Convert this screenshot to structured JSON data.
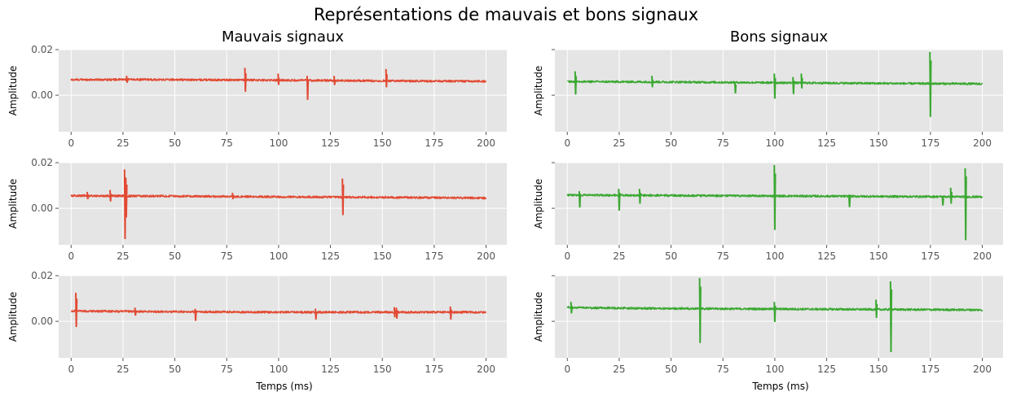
{
  "suptitle": "Représentations de mauvais et bons signaux",
  "columns": [
    {
      "title": "Mauvais signaux",
      "color": "#e24a33"
    },
    {
      "title": "Bons signaux",
      "color": "#3aa831"
    }
  ],
  "style": {
    "panel_bg": "#e5e5e5",
    "grid_color": "#ffffff",
    "tick_color": "#555555"
  },
  "chart_data": [
    {
      "type": "line",
      "panel": "bad-1",
      "column": 0,
      "row": 0,
      "ylabel": "Amplitude",
      "xlabel": "",
      "xlim": [
        -6,
        210
      ],
      "ylim": [
        -0.016,
        0.02
      ],
      "xticks": [
        0,
        25,
        50,
        75,
        100,
        125,
        150,
        175,
        200
      ],
      "yticks": [
        0.0,
        0.02
      ],
      "ytick_labels": [
        "0.00",
        "0.02"
      ],
      "grid": true,
      "baseline": [
        [
          0,
          0.0068
        ],
        [
          30,
          0.0069
        ],
        [
          100,
          0.0066
        ],
        [
          150,
          0.0063
        ],
        [
          200,
          0.0061
        ]
      ],
      "spikes": [
        [
          84,
          0.012,
          0.0015
        ],
        [
          114,
          0.0085,
          -0.002
        ],
        [
          152,
          0.0115,
          0.0035
        ],
        [
          100,
          0.0095,
          0.0045
        ],
        [
          127,
          0.0085,
          0.0045
        ],
        [
          27,
          0.0085,
          0.0055
        ]
      ]
    },
    {
      "type": "line",
      "panel": "bad-2",
      "column": 0,
      "row": 1,
      "ylabel": "Amplitude",
      "xlabel": "",
      "xlim": [
        -6,
        210
      ],
      "ylim": [
        -0.016,
        0.02
      ],
      "xticks": [
        0,
        25,
        50,
        75,
        100,
        125,
        150,
        175,
        200
      ],
      "yticks": [
        0.0,
        0.02
      ],
      "ytick_labels": [
        "0.00",
        "0.02"
      ],
      "grid": true,
      "baseline": [
        [
          0,
          0.0055
        ],
        [
          50,
          0.0053
        ],
        [
          100,
          0.005
        ],
        [
          150,
          0.0048
        ],
        [
          200,
          0.0045
        ]
      ],
      "spikes": [
        [
          26,
          0.017,
          -0.0135
        ],
        [
          26.6,
          0.013,
          -0.004
        ],
        [
          131,
          0.013,
          -0.003
        ],
        [
          19,
          0.008,
          0.003
        ],
        [
          8,
          0.0072,
          0.004
        ],
        [
          78,
          0.0068,
          0.004
        ]
      ]
    },
    {
      "type": "line",
      "panel": "bad-3",
      "column": 0,
      "row": 2,
      "ylabel": "Amplitude",
      "xlabel": "Temps (ms)",
      "xlim": [
        -6,
        210
      ],
      "ylim": [
        -0.016,
        0.02
      ],
      "xticks": [
        0,
        25,
        50,
        75,
        100,
        125,
        150,
        175,
        200
      ],
      "yticks": [
        0.0,
        0.02
      ],
      "ytick_labels": [
        "0.00",
        "0.02"
      ],
      "grid": true,
      "baseline": [
        [
          0,
          0.0045
        ],
        [
          50,
          0.0042
        ],
        [
          100,
          0.004
        ],
        [
          150,
          0.004
        ],
        [
          200,
          0.004
        ]
      ],
      "spikes": [
        [
          2.5,
          0.0125,
          -0.0025
        ],
        [
          60,
          0.0055,
          0.0002
        ],
        [
          118,
          0.0055,
          0.0008
        ],
        [
          183,
          0.0065,
          0.0008
        ],
        [
          156,
          0.0062,
          0.0018
        ],
        [
          157,
          0.006,
          0.0012
        ],
        [
          31,
          0.006,
          0.0025
        ]
      ]
    },
    {
      "type": "line",
      "panel": "good-1",
      "column": 1,
      "row": 0,
      "ylabel": "Amplitude",
      "xlabel": "",
      "xlim": [
        -6,
        210
      ],
      "ylim": [
        -0.016,
        0.02
      ],
      "xticks": [
        0,
        25,
        50,
        75,
        100,
        125,
        150,
        175,
        200
      ],
      "yticks": [
        0.0,
        0.02
      ],
      "ytick_labels": [
        "",
        ""
      ],
      "grid": true,
      "baseline": [
        [
          0,
          0.006
        ],
        [
          50,
          0.0058
        ],
        [
          100,
          0.0055
        ],
        [
          150,
          0.0052
        ],
        [
          200,
          0.005
        ]
      ],
      "spikes": [
        [
          175,
          0.019,
          -0.0095
        ],
        [
          100,
          0.0095,
          -0.0015
        ],
        [
          4,
          0.0105,
          0.0003
        ],
        [
          81,
          0.0058,
          0.0008
        ],
        [
          109,
          0.008,
          0.0005
        ],
        [
          113,
          0.0095,
          0.003
        ],
        [
          41,
          0.0085,
          0.0035
        ]
      ]
    },
    {
      "type": "line",
      "panel": "good-2",
      "column": 1,
      "row": 1,
      "ylabel": "Amplitude",
      "xlabel": "",
      "xlim": [
        -6,
        210
      ],
      "ylim": [
        -0.016,
        0.02
      ],
      "xticks": [
        0,
        25,
        50,
        75,
        100,
        125,
        150,
        175,
        200
      ],
      "yticks": [
        0.0,
        0.02
      ],
      "ytick_labels": [
        "",
        ""
      ],
      "grid": true,
      "baseline": [
        [
          0,
          0.0058
        ],
        [
          50,
          0.0056
        ],
        [
          100,
          0.0054
        ],
        [
          150,
          0.0052
        ],
        [
          200,
          0.005
        ]
      ],
      "spikes": [
        [
          100,
          0.019,
          -0.0095
        ],
        [
          192,
          0.0175,
          -0.014
        ],
        [
          25,
          0.0085,
          -0.001
        ],
        [
          6,
          0.0075,
          0.0003
        ],
        [
          136,
          0.006,
          0.0005
        ],
        [
          181,
          0.0055,
          0.0012
        ],
        [
          185,
          0.009,
          0.002
        ],
        [
          35,
          0.0085,
          0.002
        ]
      ]
    },
    {
      "type": "line",
      "panel": "good-3",
      "column": 1,
      "row": 2,
      "ylabel": "Amplitude",
      "xlabel": "Temps (ms)",
      "xlim": [
        -6,
        210
      ],
      "ylim": [
        -0.016,
        0.02
      ],
      "xticks": [
        0,
        25,
        50,
        75,
        100,
        125,
        150,
        175,
        200
      ],
      "yticks": [
        0.0,
        0.02
      ],
      "ytick_labels": [
        "",
        ""
      ],
      "grid": true,
      "baseline": [
        [
          0,
          0.006
        ],
        [
          50,
          0.0056
        ],
        [
          100,
          0.0054
        ],
        [
          150,
          0.0052
        ],
        [
          200,
          0.005
        ]
      ],
      "spikes": [
        [
          64,
          0.019,
          -0.0095
        ],
        [
          156,
          0.0175,
          -0.0135
        ],
        [
          100,
          0.0085,
          -0.0003
        ],
        [
          149,
          0.0095,
          0.0015
        ],
        [
          2,
          0.0085,
          0.0035
        ]
      ]
    }
  ]
}
